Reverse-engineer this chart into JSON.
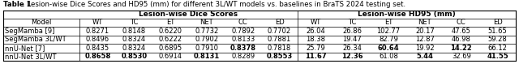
{
  "title_bold": "Table 1",
  "title_rest": ". Lesion-wise Dice Scores and HD95 (mm) for different 3L/WT models vs. baselines in BraTS 2024 testing set.",
  "group1_header": "Lesion-wise Dice Scores",
  "group2_header": "Lesion-wise HD95 (mm)",
  "col_headers": [
    "WT",
    "TC",
    "ET",
    "NET",
    "CC",
    "ED"
  ],
  "row_header": "Model",
  "rows": [
    {
      "model": "SegMamba [9]",
      "dice": [
        "0.8271",
        "0.8148",
        "0.6220",
        "0.7732",
        "0.7892",
        "0.7702"
      ],
      "hd95": [
        "26.04",
        "26.86",
        "102.77",
        "20.17",
        "47.65",
        "51.65"
      ],
      "dice_bold": [
        false,
        false,
        false,
        false,
        false,
        false
      ],
      "hd95_bold": [
        false,
        false,
        false,
        false,
        false,
        false
      ]
    },
    {
      "model": "SegMamba 3L/WT",
      "dice": [
        "0.8496",
        "0.8324",
        "0.6222",
        "0.7902",
        "0.8133",
        "0.7881"
      ],
      "hd95": [
        "18.38",
        "19.47",
        "82.79",
        "12.87",
        "46.98",
        "59.28"
      ],
      "dice_bold": [
        false,
        false,
        false,
        false,
        false,
        false
      ],
      "hd95_bold": [
        false,
        false,
        false,
        false,
        false,
        false
      ]
    },
    {
      "model": "nnU-Net [7]",
      "dice": [
        "0.8435",
        "0.8324",
        "0.6895",
        "0.7910",
        "0.8378",
        "0.7818"
      ],
      "hd95": [
        "25.79",
        "26.34",
        "60.64",
        "19.92",
        "14.22",
        "66.12"
      ],
      "dice_bold": [
        false,
        false,
        false,
        false,
        true,
        false
      ],
      "hd95_bold": [
        false,
        false,
        true,
        false,
        true,
        false
      ]
    },
    {
      "model": "nnU-Net 3L/WT",
      "dice": [
        "0.8658",
        "0.8530",
        "0.6914",
        "0.8131",
        "0.8289",
        "0.8553"
      ],
      "hd95": [
        "11.67",
        "12.36",
        "61.08",
        "5.44",
        "32.69",
        "41.55"
      ],
      "dice_bold": [
        true,
        true,
        false,
        true,
        false,
        true
      ],
      "hd95_bold": [
        true,
        true,
        false,
        true,
        false,
        true
      ]
    }
  ],
  "line_color": "#000000",
  "text_color": "#000000",
  "font_size": 6.0,
  "title_font_size": 6.2,
  "fig_width": 6.4,
  "fig_height": 1.0,
  "dpi": 100
}
